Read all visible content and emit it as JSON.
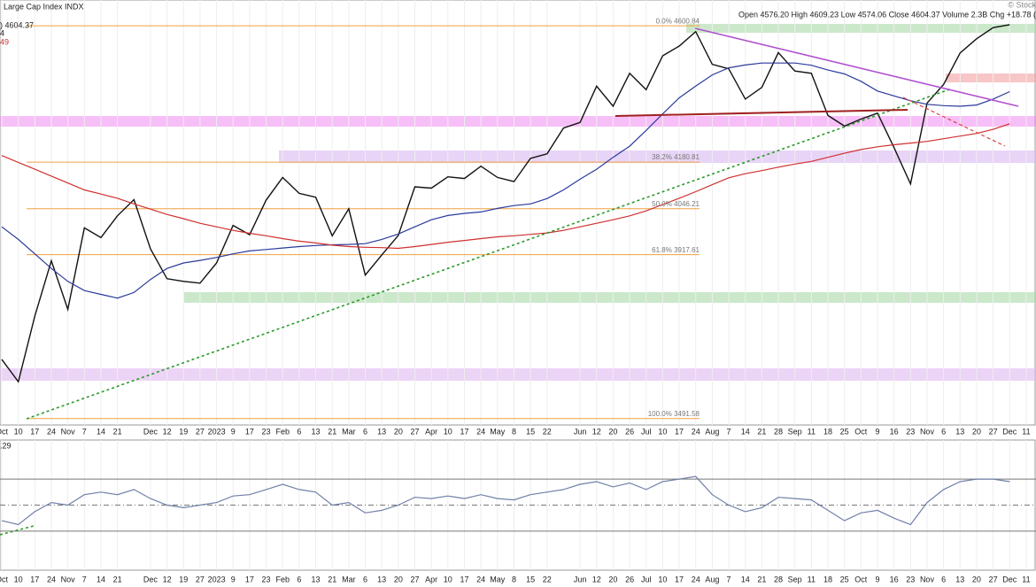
{
  "header": {
    "title": "Large Cap Index INDX",
    "last": ") 4604.37",
    "line2": "4",
    "line3": "49",
    "quote": "Open 4576.20  High 4609.23  Low 4574.06  Close 4604.37  Volume 2.3B  Chg +18.78 (",
    "credit": "© Stock"
  },
  "chart_data": [
    {
      "type": "line",
      "log_scale": true,
      "ylim": [
        3476,
        4685
      ],
      "categories": [
        "Oct",
        "10",
        "17",
        "24",
        "Nov",
        "7",
        "14",
        "21",
        null,
        "Dec",
        "12",
        "19",
        "27",
        "2023",
        "9",
        "17",
        "23",
        "Feb",
        "6",
        "13",
        "21",
        "Mar",
        "6",
        "13",
        "20",
        "27",
        "Apr",
        "10",
        "17",
        "24",
        "May",
        "8",
        "15",
        "22",
        null,
        "Jun",
        "12",
        "20",
        "26",
        "Jul",
        "10",
        "17",
        "24",
        "Aug",
        "7",
        "14",
        "21",
        "28",
        "Sep",
        "11",
        "18",
        "25",
        "Oct",
        "9",
        "16",
        "23",
        "Nov",
        "6",
        "13",
        "20",
        "27",
        "Dec",
        "11"
      ],
      "series": [
        {
          "color": "#111111",
          "values": [
            3640,
            3583,
            3752,
            3901,
            3770,
            3992,
            3965,
            4026,
            4072,
            3934,
            3852,
            3845,
            3840,
            3895,
            3999,
            3973,
            4071,
            4136,
            4090,
            4079,
            3970,
            4046,
            3862,
            3917,
            3971,
            4109,
            4105,
            4138,
            4133,
            4169,
            4136,
            4124,
            4192,
            4205,
            4282,
            4299,
            4410,
            4348,
            4450,
            4399,
            4505,
            4536,
            4582,
            4478,
            4464,
            4370,
            4406,
            4515,
            4457,
            4450,
            4320,
            4288,
            4309,
            4327,
            4224,
            4117,
            4358,
            4415,
            4514,
            4559,
            4595,
            4604.37,
            null
          ]
        },
        {
          "color": "#2b3a9c",
          "values": [
            3995,
            3960,
            3920,
            3880,
            3845,
            3820,
            3810,
            3800,
            3815,
            3850,
            3880,
            3895,
            3902,
            3910,
            3920,
            3928,
            3932,
            3936,
            3940,
            3943,
            3945,
            3946,
            3948,
            3960,
            3975,
            3995,
            4015,
            4027,
            4033,
            4037,
            4047,
            4055,
            4060,
            4075,
            4100,
            4131,
            4160,
            4195,
            4228,
            4275,
            4325,
            4374,
            4410,
            4445,
            4467,
            4476,
            4482,
            4482,
            4482,
            4475,
            4460,
            4448,
            4425,
            4395,
            4380,
            4365,
            4354,
            4350,
            4348,
            4352,
            4370,
            4393,
            null
          ]
        },
        {
          "color": "#d03030",
          "values": [
            4200,
            4180,
            4160,
            4140,
            4120,
            4100,
            4088,
            4076,
            4060,
            4045,
            4030,
            4018,
            4005,
            3995,
            3985,
            3977,
            3970,
            3962,
            3955,
            3950,
            3944,
            3940,
            3938,
            3937,
            3935,
            3940,
            3946,
            3952,
            3957,
            3962,
            3967,
            3970,
            3974,
            3978,
            3985,
            3995,
            4005,
            4015,
            4026,
            4040,
            4058,
            4076,
            4095,
            4115,
            4135,
            4147,
            4156,
            4166,
            4175,
            4183,
            4195,
            4207,
            4218,
            4226,
            4232,
            4237,
            4242,
            4250,
            4258,
            4266,
            4278,
            4295,
            null
          ]
        }
      ],
      "levels": [
        {
          "value": 4600.84,
          "label": "0.0% 4600.84"
        },
        {
          "value": 4180.81,
          "label": "38.2% 4180.81"
        },
        {
          "value": 4046.21,
          "label": "50.0% 4046.21"
        },
        {
          "value": 3917.61,
          "label": "61.8% 3917.61"
        },
        {
          "value": 3491.58,
          "label": "100.0% 3491.58"
        }
      ],
      "level_color": "#f0a040"
    },
    {
      "type": "line",
      "title": ".29",
      "ylim": [
        0,
        100
      ],
      "yticks": [
        30,
        50,
        70
      ],
      "grid": true,
      "categories": [
        "Oct",
        "10",
        "17",
        "24",
        "Nov",
        "7",
        "14",
        "21",
        null,
        "Dec",
        "12",
        "19",
        "27",
        "2023",
        "9",
        "17",
        "23",
        "Feb",
        "6",
        "13",
        "21",
        "Mar",
        "6",
        "13",
        "20",
        "27",
        "Apr",
        "10",
        "17",
        "24",
        "May",
        "8",
        "15",
        "22",
        null,
        "Jun",
        "12",
        "20",
        "26",
        "Jul",
        "10",
        "17",
        "24",
        "Aug",
        "7",
        "14",
        "21",
        "28",
        "Sep",
        "11",
        "18",
        "25",
        "Oct",
        "9",
        "16",
        "23",
        "Nov",
        "6",
        "13",
        "20",
        "27",
        "Dec",
        "11"
      ],
      "series": [
        {
          "color": "#7080a8",
          "values": [
            38,
            35,
            45,
            52,
            50,
            58,
            60,
            58,
            62,
            55,
            50,
            48,
            50,
            52,
            57,
            58,
            62,
            66,
            62,
            60,
            50,
            52,
            44,
            46,
            50,
            56,
            55,
            57,
            55,
            58,
            55,
            54,
            58,
            60,
            62,
            66,
            68,
            64,
            67,
            62,
            68,
            70,
            72,
            58,
            50,
            45,
            48,
            56,
            55,
            54,
            46,
            38,
            44,
            46,
            40,
            35,
            52,
            62,
            68,
            70,
            70,
            68,
            null
          ]
        }
      ]
    }
  ]
}
